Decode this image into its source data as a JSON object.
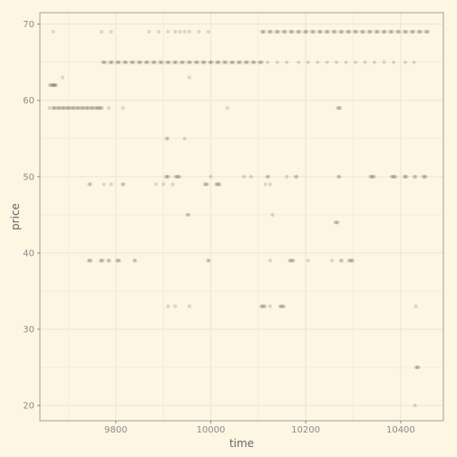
{
  "chart_data": {
    "type": "scatter",
    "title": "",
    "xlabel": "time",
    "ylabel": "price",
    "xlim": [
      9640,
      10490
    ],
    "ylim": [
      18,
      71.5
    ],
    "x_ticks": [
      9800,
      10000,
      10200,
      10400
    ],
    "y_ticks": [
      20,
      30,
      40,
      50,
      60,
      70
    ],
    "grid": true,
    "point_color": "#000000",
    "background": "#fdf6e3",
    "grid_color": "#ece5d3",
    "axis_color": "#8a8a8a",
    "points": [
      {
        "x": 9668,
        "y": 69,
        "n": 1
      },
      {
        "x": 9688,
        "y": 63,
        "n": 1
      },
      {
        "x": 9665,
        "y": 62,
        "n": 4
      },
      {
        "x": 9672,
        "y": 62,
        "n": 3
      },
      {
        "x": 9660,
        "y": 59,
        "n": 1
      },
      {
        "x": 9670,
        "y": 59,
        "n": 3
      },
      {
        "x": 9680,
        "y": 59,
        "n": 3
      },
      {
        "x": 9690,
        "y": 59,
        "n": 3
      },
      {
        "x": 9700,
        "y": 59,
        "n": 3
      },
      {
        "x": 9710,
        "y": 59,
        "n": 3
      },
      {
        "x": 9720,
        "y": 59,
        "n": 3
      },
      {
        "x": 9730,
        "y": 59,
        "n": 3
      },
      {
        "x": 9740,
        "y": 59,
        "n": 3
      },
      {
        "x": 9750,
        "y": 59,
        "n": 3
      },
      {
        "x": 9760,
        "y": 59,
        "n": 3
      },
      {
        "x": 9768,
        "y": 59,
        "n": 3
      },
      {
        "x": 9785,
        "y": 59,
        "n": 1
      },
      {
        "x": 9815,
        "y": 59,
        "n": 1
      },
      {
        "x": 10035,
        "y": 59,
        "n": 1
      },
      {
        "x": 10270,
        "y": 59,
        "n": 3
      },
      {
        "x": 9770,
        "y": 69,
        "n": 1
      },
      {
        "x": 9790,
        "y": 69,
        "n": 1
      },
      {
        "x": 9870,
        "y": 69,
        "n": 1
      },
      {
        "x": 9890,
        "y": 69,
        "n": 1
      },
      {
        "x": 9910,
        "y": 69,
        "n": 1
      },
      {
        "x": 9925,
        "y": 69,
        "n": 1
      },
      {
        "x": 9935,
        "y": 69,
        "n": 1
      },
      {
        "x": 9945,
        "y": 69,
        "n": 1
      },
      {
        "x": 9955,
        "y": 69,
        "n": 1
      },
      {
        "x": 9975,
        "y": 69,
        "n": 1
      },
      {
        "x": 9995,
        "y": 69,
        "n": 1
      },
      {
        "x": 9775,
        "y": 65,
        "n": 3
      },
      {
        "x": 9790,
        "y": 65,
        "n": 3
      },
      {
        "x": 9805,
        "y": 65,
        "n": 3
      },
      {
        "x": 9820,
        "y": 65,
        "n": 3
      },
      {
        "x": 9835,
        "y": 65,
        "n": 3
      },
      {
        "x": 9850,
        "y": 65,
        "n": 3
      },
      {
        "x": 9865,
        "y": 65,
        "n": 3
      },
      {
        "x": 9880,
        "y": 65,
        "n": 3
      },
      {
        "x": 9895,
        "y": 65,
        "n": 3
      },
      {
        "x": 9910,
        "y": 65,
        "n": 3
      },
      {
        "x": 9925,
        "y": 65,
        "n": 3
      },
      {
        "x": 9940,
        "y": 65,
        "n": 3
      },
      {
        "x": 9955,
        "y": 65,
        "n": 3
      },
      {
        "x": 9970,
        "y": 65,
        "n": 3
      },
      {
        "x": 9985,
        "y": 65,
        "n": 3
      },
      {
        "x": 10000,
        "y": 65,
        "n": 3
      },
      {
        "x": 10015,
        "y": 65,
        "n": 3
      },
      {
        "x": 10030,
        "y": 65,
        "n": 3
      },
      {
        "x": 10045,
        "y": 65,
        "n": 3
      },
      {
        "x": 10060,
        "y": 65,
        "n": 3
      },
      {
        "x": 10075,
        "y": 65,
        "n": 3
      },
      {
        "x": 10090,
        "y": 65,
        "n": 3
      },
      {
        "x": 10105,
        "y": 65,
        "n": 3
      },
      {
        "x": 10120,
        "y": 65,
        "n": 1
      },
      {
        "x": 10140,
        "y": 65,
        "n": 1
      },
      {
        "x": 10160,
        "y": 65,
        "n": 1
      },
      {
        "x": 10185,
        "y": 65,
        "n": 1
      },
      {
        "x": 10205,
        "y": 65,
        "n": 1
      },
      {
        "x": 10225,
        "y": 65,
        "n": 1
      },
      {
        "x": 10245,
        "y": 65,
        "n": 1
      },
      {
        "x": 10265,
        "y": 65,
        "n": 1
      },
      {
        "x": 10285,
        "y": 65,
        "n": 1
      },
      {
        "x": 10305,
        "y": 65,
        "n": 1
      },
      {
        "x": 10325,
        "y": 65,
        "n": 1
      },
      {
        "x": 10345,
        "y": 65,
        "n": 1
      },
      {
        "x": 10365,
        "y": 65,
        "n": 1
      },
      {
        "x": 10385,
        "y": 65,
        "n": 1
      },
      {
        "x": 10410,
        "y": 65,
        "n": 1
      },
      {
        "x": 10428,
        "y": 65,
        "n": 1
      },
      {
        "x": 9955,
        "y": 63,
        "n": 1
      },
      {
        "x": 10110,
        "y": 69,
        "n": 3
      },
      {
        "x": 10125,
        "y": 69,
        "n": 3
      },
      {
        "x": 10140,
        "y": 69,
        "n": 3
      },
      {
        "x": 10155,
        "y": 69,
        "n": 3
      },
      {
        "x": 10170,
        "y": 69,
        "n": 3
      },
      {
        "x": 10185,
        "y": 69,
        "n": 3
      },
      {
        "x": 10200,
        "y": 69,
        "n": 3
      },
      {
        "x": 10215,
        "y": 69,
        "n": 3
      },
      {
        "x": 10230,
        "y": 69,
        "n": 3
      },
      {
        "x": 10245,
        "y": 69,
        "n": 3
      },
      {
        "x": 10260,
        "y": 69,
        "n": 3
      },
      {
        "x": 10275,
        "y": 69,
        "n": 3
      },
      {
        "x": 10290,
        "y": 69,
        "n": 3
      },
      {
        "x": 10305,
        "y": 69,
        "n": 3
      },
      {
        "x": 10320,
        "y": 69,
        "n": 3
      },
      {
        "x": 10335,
        "y": 69,
        "n": 3
      },
      {
        "x": 10350,
        "y": 69,
        "n": 3
      },
      {
        "x": 10365,
        "y": 69,
        "n": 3
      },
      {
        "x": 10380,
        "y": 69,
        "n": 3
      },
      {
        "x": 10395,
        "y": 69,
        "n": 3
      },
      {
        "x": 10410,
        "y": 69,
        "n": 3
      },
      {
        "x": 10425,
        "y": 69,
        "n": 3
      },
      {
        "x": 10440,
        "y": 69,
        "n": 3
      },
      {
        "x": 10455,
        "y": 69,
        "n": 3
      },
      {
        "x": 9908,
        "y": 55,
        "n": 2
      },
      {
        "x": 9945,
        "y": 55,
        "n": 1
      },
      {
        "x": 9745,
        "y": 49,
        "n": 2
      },
      {
        "x": 9775,
        "y": 49,
        "n": 1
      },
      {
        "x": 9790,
        "y": 49,
        "n": 1
      },
      {
        "x": 9815,
        "y": 49,
        "n": 2
      },
      {
        "x": 9885,
        "y": 49,
        "n": 1
      },
      {
        "x": 9900,
        "y": 49,
        "n": 1
      },
      {
        "x": 9920,
        "y": 49,
        "n": 1
      },
      {
        "x": 9990,
        "y": 49,
        "n": 3
      },
      {
        "x": 10015,
        "y": 49,
        "n": 4
      },
      {
        "x": 10115,
        "y": 49,
        "n": 1
      },
      {
        "x": 10125,
        "y": 49,
        "n": 1
      },
      {
        "x": 9908,
        "y": 50,
        "n": 3
      },
      {
        "x": 9930,
        "y": 50,
        "n": 4
      },
      {
        "x": 10000,
        "y": 50,
        "n": 1
      },
      {
        "x": 10070,
        "y": 50,
        "n": 1
      },
      {
        "x": 10085,
        "y": 50,
        "n": 1
      },
      {
        "x": 10120,
        "y": 50,
        "n": 2
      },
      {
        "x": 10160,
        "y": 50,
        "n": 1
      },
      {
        "x": 10180,
        "y": 50,
        "n": 2
      },
      {
        "x": 10270,
        "y": 50,
        "n": 2
      },
      {
        "x": 10340,
        "y": 50,
        "n": 4
      },
      {
        "x": 10385,
        "y": 50,
        "n": 4
      },
      {
        "x": 10410,
        "y": 50,
        "n": 3
      },
      {
        "x": 10430,
        "y": 50,
        "n": 2
      },
      {
        "x": 10450,
        "y": 50,
        "n": 3
      },
      {
        "x": 9952,
        "y": 45,
        "n": 2
      },
      {
        "x": 10130,
        "y": 45,
        "n": 1
      },
      {
        "x": 10265,
        "y": 44,
        "n": 3
      },
      {
        "x": 9745,
        "y": 39,
        "n": 3
      },
      {
        "x": 9770,
        "y": 39,
        "n": 3
      },
      {
        "x": 9785,
        "y": 39,
        "n": 2
      },
      {
        "x": 9805,
        "y": 39,
        "n": 3
      },
      {
        "x": 9840,
        "y": 39,
        "n": 2
      },
      {
        "x": 9995,
        "y": 39,
        "n": 2
      },
      {
        "x": 10125,
        "y": 39,
        "n": 1
      },
      {
        "x": 10170,
        "y": 39,
        "n": 4
      },
      {
        "x": 10205,
        "y": 39,
        "n": 1
      },
      {
        "x": 10255,
        "y": 39,
        "n": 1
      },
      {
        "x": 10275,
        "y": 39,
        "n": 2
      },
      {
        "x": 10295,
        "y": 39,
        "n": 4
      },
      {
        "x": 9910,
        "y": 33,
        "n": 1
      },
      {
        "x": 9925,
        "y": 33,
        "n": 1
      },
      {
        "x": 9955,
        "y": 33,
        "n": 1
      },
      {
        "x": 10110,
        "y": 33,
        "n": 4
      },
      {
        "x": 10125,
        "y": 33,
        "n": 1
      },
      {
        "x": 10150,
        "y": 33,
        "n": 4
      },
      {
        "x": 10432,
        "y": 33,
        "n": 1
      },
      {
        "x": 10435,
        "y": 25,
        "n": 3
      },
      {
        "x": 10430,
        "y": 20,
        "n": 1
      }
    ]
  }
}
